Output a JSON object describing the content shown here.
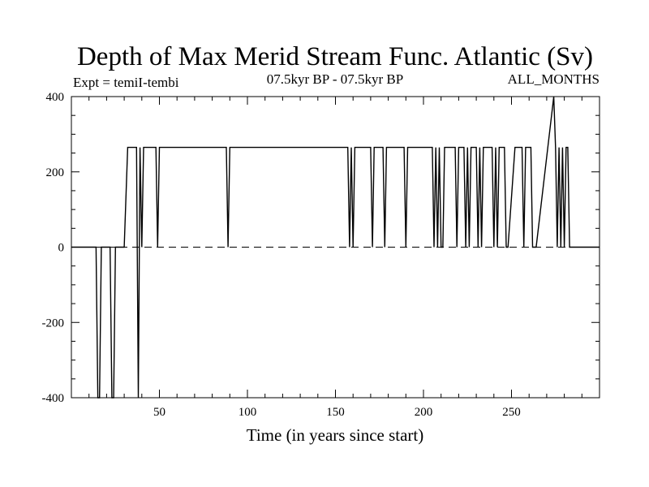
{
  "chart_data": {
    "type": "line",
    "title": "Depth of Max Merid Stream Func. Atlantic (Sv)",
    "subtitle_left": "Expt = temiI-tembi",
    "subtitle_center": "07.5kyr BP - 07.5kyr BP",
    "subtitle_right": "ALL_MONTHS",
    "xlabel": "Time (in years since start)",
    "ylabel": "",
    "xlim": [
      0,
      300
    ],
    "ylim": [
      -400,
      400
    ],
    "x_ticks": [
      50,
      100,
      150,
      200,
      250
    ],
    "y_ticks": [
      -400,
      -200,
      0,
      200,
      400
    ],
    "zero_line": "dashed",
    "grid": false,
    "series": [
      {
        "x": [
          0,
          14,
          15,
          16,
          17,
          22,
          23,
          24,
          25,
          30,
          32,
          33,
          37,
          38,
          39,
          40,
          41,
          42,
          43,
          48,
          49,
          50,
          51,
          52,
          53,
          88,
          89,
          90,
          91,
          92,
          93,
          157,
          158,
          159,
          160,
          161,
          162,
          170,
          171,
          172,
          173,
          174,
          175,
          177,
          178,
          179,
          180,
          181,
          182,
          189,
          190,
          191,
          192,
          193,
          194,
          205,
          206,
          207,
          208,
          209,
          210,
          211,
          212,
          213,
          214,
          215,
          218,
          219,
          220,
          221,
          222,
          223,
          224,
          225,
          226,
          227,
          228,
          229,
          230,
          231,
          232,
          233,
          234,
          235,
          236,
          239,
          240,
          241,
          242,
          243,
          244,
          245,
          246,
          247,
          248,
          252,
          253,
          254,
          255,
          256,
          257,
          258,
          259,
          260,
          261,
          262,
          263,
          264,
          274,
          275,
          276,
          277,
          278,
          279,
          280,
          281,
          282,
          283,
          284,
          285,
          286,
          287,
          290,
          300
        ],
        "values": [
          0,
          0,
          -400,
          -400,
          0,
          0,
          -400,
          -400,
          0,
          0,
          265,
          265,
          265,
          -400,
          265,
          0,
          265,
          265,
          265,
          265,
          0,
          265,
          265,
          265,
          265,
          265,
          0,
          265,
          265,
          265,
          265,
          265,
          0,
          265,
          0,
          265,
          265,
          265,
          0,
          265,
          265,
          265,
          265,
          265,
          0,
          265,
          265,
          265,
          265,
          265,
          0,
          265,
          265,
          265,
          265,
          265,
          0,
          265,
          0,
          265,
          0,
          0,
          265,
          265,
          265,
          265,
          265,
          0,
          265,
          265,
          265,
          265,
          0,
          265,
          0,
          265,
          265,
          265,
          265,
          0,
          265,
          0,
          265,
          265,
          265,
          265,
          0,
          265,
          0,
          265,
          265,
          265,
          265,
          0,
          0,
          265,
          265,
          265,
          265,
          265,
          0,
          265,
          265,
          265,
          265,
          0,
          0,
          0,
          400,
          265,
          0,
          265,
          0,
          265,
          0,
          265,
          265,
          0,
          0,
          0,
          0,
          0,
          0,
          0
        ]
      }
    ]
  }
}
